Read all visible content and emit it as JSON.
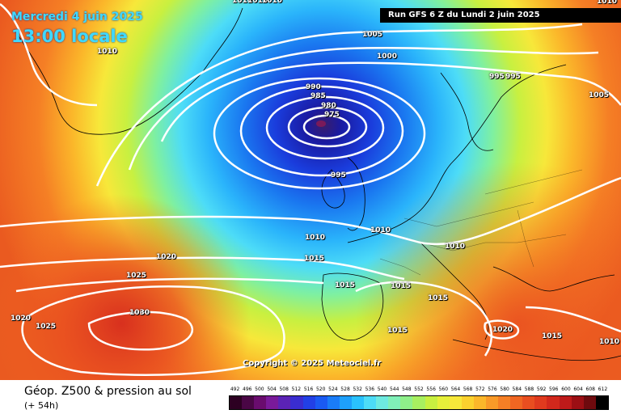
{
  "header": {
    "date": "Mercredi 4 juin 2025",
    "time": "13:00 locale",
    "run": "Run GFS 6 Z du Lundi 2 juin 2025"
  },
  "copyright": "Copyright © 2025 Meteociel.fr",
  "footer": {
    "title": "Géop. Z500 & pression au sol",
    "subtitle": "(+ 54h)"
  },
  "isobar_labels": [
    "1010",
    "1010",
    "1010",
    "1005",
    "1010",
    "1000",
    "990",
    "985",
    "980",
    "975",
    "995",
    "995",
    "995",
    "1005",
    "1010",
    "1010",
    "1010",
    "1015",
    "1020",
    "1025",
    "1030",
    "1020",
    "1025",
    "1015",
    "1015",
    "1015",
    "1015",
    "1010",
    "1020",
    "1015",
    "1010"
  ],
  "legend": {
    "ticks": [
      "492",
      "496",
      "500",
      "504",
      "508",
      "512",
      "516",
      "520",
      "524",
      "528",
      "532",
      "536",
      "540",
      "544",
      "548",
      "552",
      "556",
      "560",
      "564",
      "568",
      "572",
      "576",
      "580",
      "584",
      "588",
      "592",
      "596",
      "600",
      "604",
      "608",
      "612"
    ],
    "colors": [
      "#2d0022",
      "#4a0645",
      "#6a0c6e",
      "#7a1a9a",
      "#5b23b5",
      "#3a2dd0",
      "#2240e6",
      "#1a5af2",
      "#1a7cf7",
      "#1ea0fb",
      "#2ac2fd",
      "#4ddcf7",
      "#6eeae0",
      "#80f0b8",
      "#8ff08a",
      "#a8f060",
      "#c8f040",
      "#e6f03a",
      "#f7e83a",
      "#fbd12e",
      "#fbb72a",
      "#f99a28",
      "#f57f25",
      "#f06622",
      "#e94e20",
      "#e03a1e",
      "#d2281c",
      "#be1a1a",
      "#9c0f14",
      "#6e0a0e",
      "#000000"
    ]
  }
}
